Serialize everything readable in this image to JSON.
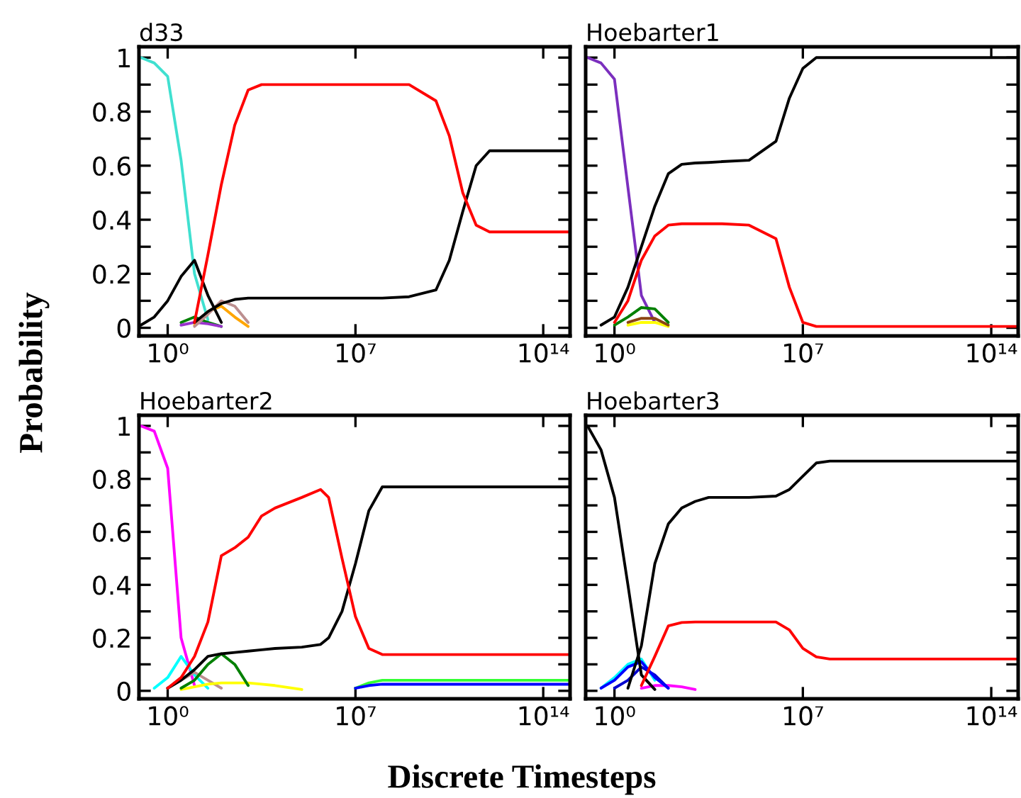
{
  "chart_data": [
    {
      "type": "line",
      "title": "d33",
      "xlabel": "Discrete Timesteps",
      "ylabel": "Probability",
      "log": "x",
      "xlim": [
        0.085,
        1000000000000000.0
      ],
      "ylim": [
        -0.03,
        1.04
      ],
      "xticks": [
        {
          "value": 1,
          "label": "10⁰"
        },
        {
          "value": 10000000.0,
          "label": "10⁷"
        },
        {
          "value": 100000000000000.0,
          "label": "10¹⁴"
        }
      ],
      "yticks": [
        0,
        {
          "value": 0.1,
          "label": null
        },
        {
          "value": 0.2,
          "label": "0.2"
        },
        {
          "value": 0.3,
          "label": null
        },
        {
          "value": 0.4,
          "label": "0.4"
        },
        {
          "value": 0.5,
          "label": null
        },
        {
          "value": 0.6,
          "label": "0.6"
        },
        {
          "value": 0.7,
          "label": null
        },
        {
          "value": 0.8,
          "label": "0.8"
        },
        {
          "value": 0.9,
          "label": null
        },
        1
      ],
      "x": [
        0.1,
        0.316,
        1,
        3.16,
        10,
        31.6,
        100,
        316,
        1000,
        3162,
        10000.0,
        100000.0,
        1000000.0,
        10000000.0,
        100000000.0,
        1000000000.0,
        10000000000.0,
        31600000000.0,
        100000000000.0,
        316000000000.0,
        1000000000000.0,
        10000000000000.0,
        100000000000000.0,
        1000000000000000.0
      ],
      "series": [
        {
          "color": "#40e0d0",
          "values": [
            1.0,
            0.98,
            0.93,
            0.62,
            0.2,
            0.03,
            null,
            null,
            null,
            null,
            null,
            null,
            null,
            null,
            null,
            null,
            null,
            null,
            null,
            null,
            null,
            null,
            null,
            null
          ]
        },
        {
          "color": "#008000",
          "values": [
            null,
            null,
            null,
            0.02,
            0.04,
            0.02,
            0.005,
            null,
            null,
            null,
            null,
            null,
            null,
            null,
            null,
            null,
            null,
            null,
            null,
            null,
            null,
            null,
            null,
            null
          ]
        },
        {
          "color": "#9932cc",
          "values": [
            null,
            null,
            null,
            0.01,
            0.02,
            0.015,
            0.005,
            null,
            null,
            null,
            null,
            null,
            null,
            null,
            null,
            null,
            null,
            null,
            null,
            null,
            null,
            null,
            null,
            null
          ]
        },
        {
          "color": "#ffa500",
          "values": [
            null,
            null,
            null,
            null,
            0.01,
            0.06,
            0.08,
            0.04,
            0.005,
            null,
            null,
            null,
            null,
            null,
            null,
            null,
            null,
            null,
            null,
            null,
            null,
            null,
            null,
            null
          ]
        },
        {
          "color": "#bc8f8f",
          "values": [
            null,
            null,
            null,
            null,
            0.005,
            0.05,
            0.1,
            0.08,
            0.02,
            null,
            null,
            null,
            null,
            null,
            null,
            null,
            null,
            null,
            null,
            null,
            null,
            null,
            null,
            null
          ]
        },
        {
          "color": "#000000",
          "values": [
            0.01,
            0.04,
            0.1,
            0.19,
            0.25,
            0.12,
            0.02,
            null,
            null,
            null,
            null,
            null,
            null,
            null,
            null,
            null,
            null,
            null,
            null,
            null,
            null,
            null,
            null,
            null
          ]
        },
        {
          "color": "#000000",
          "values": [
            null,
            null,
            null,
            null,
            0.02,
            0.06,
            0.09,
            0.105,
            0.11,
            0.11,
            0.11,
            0.11,
            0.11,
            0.11,
            0.11,
            0.115,
            0.14,
            0.25,
            0.43,
            0.6,
            0.655,
            0.655,
            0.655,
            0.655
          ]
        },
        {
          "color": "#ff0000",
          "values": [
            null,
            null,
            null,
            null,
            0.02,
            0.27,
            0.53,
            0.75,
            0.88,
            0.9,
            0.9,
            0.9,
            0.9,
            0.9,
            0.9,
            0.9,
            0.84,
            0.71,
            0.5,
            0.38,
            0.355,
            0.355,
            0.355,
            0.355
          ]
        }
      ]
    },
    {
      "type": "line",
      "title": "Hoebarter1",
      "log": "x",
      "tick_labels": "x",
      "xlim": [
        0.085,
        1000000000000000.0
      ],
      "ylim": [
        -0.03,
        1.04
      ],
      "xticks": [
        {
          "value": 1,
          "label": "10⁰"
        },
        {
          "value": 10000000.0,
          "label": "10⁷"
        },
        {
          "value": 100000000000000.0,
          "label": "10¹⁴"
        }
      ],
      "yticks": [
        {
          "value": 0,
          "label": null
        },
        {
          "value": 0.1,
          "label": null
        },
        {
          "value": 0.2,
          "label": null
        },
        {
          "value": 0.3,
          "label": null
        },
        {
          "value": 0.4,
          "label": null
        },
        {
          "value": 0.5,
          "label": null
        },
        {
          "value": 0.6,
          "label": null
        },
        {
          "value": 0.7,
          "label": null
        },
        {
          "value": 0.8,
          "label": null
        },
        {
          "value": 0.9,
          "label": null
        },
        {
          "value": 1,
          "label": null
        }
      ],
      "x": [
        0.1,
        0.316,
        1,
        3.16,
        10,
        31.6,
        100,
        316,
        1000,
        3162,
        10000.0,
        100000.0,
        1000000.0,
        3160000.0,
        10000000.0,
        31600000.0,
        100000000.0,
        1000000000.0,
        10000000000.0,
        100000000000.0,
        1000000000000.0,
        10000000000000.0,
        100000000000000.0,
        1000000000000000.0
      ],
      "series": [
        {
          "color": "#7b2fbe",
          "values": [
            1.0,
            0.98,
            0.92,
            0.52,
            0.12,
            0.02,
            null,
            null,
            null,
            null,
            null,
            null,
            null,
            null,
            null,
            null,
            null,
            null,
            null,
            null,
            null,
            null,
            null,
            null
          ]
        },
        {
          "color": "#ffff00",
          "values": [
            null,
            null,
            null,
            0.01,
            0.02,
            0.02,
            0.005,
            null,
            null,
            null,
            null,
            null,
            null,
            null,
            null,
            null,
            null,
            null,
            null,
            null,
            null,
            null,
            null,
            null
          ]
        },
        {
          "color": "#8b4513",
          "values": [
            null,
            null,
            null,
            0.02,
            0.035,
            0.035,
            0.01,
            null,
            null,
            null,
            null,
            null,
            null,
            null,
            null,
            null,
            null,
            null,
            null,
            null,
            null,
            null,
            null,
            null
          ]
        },
        {
          "color": "#008000",
          "values": [
            null,
            null,
            0.01,
            0.04,
            0.075,
            0.07,
            0.02,
            null,
            null,
            null,
            null,
            null,
            null,
            null,
            null,
            null,
            null,
            null,
            null,
            null,
            null,
            null,
            null,
            null
          ]
        },
        {
          "color": "#000000",
          "values": [
            null,
            0.01,
            0.04,
            0.15,
            0.3,
            0.45,
            0.57,
            0.605,
            0.61,
            0.612,
            0.615,
            0.62,
            0.69,
            0.85,
            0.96,
            1.0,
            1.0,
            1.0,
            1.0,
            1.0,
            1.0,
            1.0,
            1.0,
            1.0
          ]
        },
        {
          "color": "#ff0000",
          "values": [
            null,
            null,
            0.02,
            0.1,
            0.25,
            0.34,
            0.38,
            0.385,
            0.385,
            0.385,
            0.385,
            0.38,
            0.33,
            0.15,
            0.02,
            0.005,
            0.005,
            0.005,
            0.005,
            0.005,
            0.005,
            0.005,
            0.005,
            0.005
          ]
        }
      ]
    },
    {
      "type": "line",
      "title": "Hoebarter2",
      "log": "x",
      "xlim": [
        0.085,
        1000000000000000.0
      ],
      "ylim": [
        -0.03,
        1.04
      ],
      "xticks": [
        {
          "value": 1,
          "label": "10⁰"
        },
        {
          "value": 10000000.0,
          "label": "10⁷"
        },
        {
          "value": 100000000000000.0,
          "label": "10¹⁴"
        }
      ],
      "yticks": [
        0,
        {
          "value": 0.1,
          "label": null
        },
        {
          "value": 0.2,
          "label": "0.2"
        },
        {
          "value": 0.3,
          "label": null
        },
        {
          "value": 0.4,
          "label": "0.4"
        },
        {
          "value": 0.5,
          "label": null
        },
        {
          "value": 0.6,
          "label": "0.6"
        },
        {
          "value": 0.7,
          "label": null
        },
        {
          "value": 0.8,
          "label": "0.8"
        },
        {
          "value": 0.9,
          "label": null
        },
        1
      ],
      "x": [
        0.1,
        0.316,
        1,
        3.16,
        10,
        31.6,
        100,
        316,
        1000,
        3162,
        10000.0,
        100000.0,
        500000.0,
        1000000.0,
        3160000.0,
        10000000.0,
        31600000.0,
        100000000.0,
        1000000000.0,
        10000000000.0,
        100000000000.0,
        1000000000000.0,
        10000000000000.0,
        100000000000000.0,
        1000000000000000.0
      ],
      "series": [
        {
          "color": "#ff00ff",
          "values": [
            1.0,
            0.98,
            0.84,
            0.2,
            0.02,
            null,
            null,
            null,
            null,
            null,
            null,
            null,
            null,
            null,
            null,
            null,
            null,
            null,
            null,
            null,
            null,
            null,
            null,
            null,
            null
          ]
        },
        {
          "color": "#00ffff",
          "values": [
            null,
            0.01,
            0.05,
            0.13,
            0.06,
            0.01,
            null,
            null,
            null,
            null,
            null,
            null,
            null,
            null,
            null,
            null,
            null,
            null,
            null,
            null,
            null,
            null,
            null,
            null,
            null
          ]
        },
        {
          "color": "#bc8f8f",
          "values": [
            null,
            null,
            0.01,
            0.04,
            0.07,
            0.04,
            0.01,
            null,
            null,
            null,
            null,
            null,
            null,
            null,
            null,
            null,
            null,
            null,
            null,
            null,
            null,
            null,
            null,
            null,
            null
          ]
        },
        {
          "color": "#ffff00",
          "values": [
            null,
            null,
            null,
            0.005,
            0.015,
            0.025,
            0.03,
            0.03,
            0.03,
            0.025,
            0.02,
            0.005,
            null,
            null,
            null,
            null,
            null,
            null,
            null,
            null,
            null,
            null,
            null,
            null,
            null
          ]
        },
        {
          "color": "#008000",
          "values": [
            null,
            null,
            null,
            0.01,
            0.04,
            0.1,
            0.14,
            0.1,
            0.02,
            null,
            null,
            null,
            null,
            null,
            null,
            null,
            null,
            null,
            null,
            null,
            null,
            null,
            null,
            null,
            null
          ]
        },
        {
          "color": "#33ff33",
          "values": [
            null,
            null,
            null,
            null,
            null,
            null,
            null,
            null,
            null,
            null,
            null,
            null,
            null,
            null,
            null,
            0.01,
            0.03,
            0.04,
            0.04,
            0.04,
            0.04,
            0.04,
            0.04,
            0.04,
            0.04
          ]
        },
        {
          "color": "#0000ff",
          "values": [
            null,
            null,
            null,
            null,
            null,
            null,
            null,
            null,
            null,
            null,
            null,
            null,
            null,
            null,
            null,
            0.01,
            0.02,
            0.025,
            0.025,
            0.025,
            0.025,
            0.025,
            0.025,
            0.025,
            0.025
          ]
        },
        {
          "color": "#000000",
          "values": [
            null,
            null,
            0.01,
            0.04,
            0.08,
            0.13,
            0.14,
            0.145,
            0.15,
            0.155,
            0.16,
            0.165,
            0.175,
            0.2,
            0.3,
            0.48,
            0.68,
            0.77,
            0.77,
            0.77,
            0.77,
            0.77,
            0.77,
            0.77,
            0.77
          ]
        },
        {
          "color": "#ff0000",
          "values": [
            null,
            null,
            0.01,
            0.05,
            0.13,
            0.26,
            0.51,
            0.54,
            0.58,
            0.66,
            0.69,
            0.73,
            0.76,
            0.73,
            0.5,
            0.28,
            0.16,
            0.137,
            0.137,
            0.137,
            0.137,
            0.137,
            0.137,
            0.137,
            0.137
          ]
        }
      ]
    },
    {
      "type": "line",
      "title": "Hoebarter3",
      "log": "x",
      "tick_labels": "x",
      "xlim": [
        0.085,
        1000000000000000.0
      ],
      "ylim": [
        -0.03,
        1.04
      ],
      "xticks": [
        {
          "value": 1,
          "label": "10⁰"
        },
        {
          "value": 10000000.0,
          "label": "10⁷"
        },
        {
          "value": 100000000000000.0,
          "label": "10¹⁴"
        }
      ],
      "yticks": [
        {
          "value": 0,
          "label": null
        },
        {
          "value": 0.1,
          "label": null
        },
        {
          "value": 0.2,
          "label": null
        },
        {
          "value": 0.3,
          "label": null
        },
        {
          "value": 0.4,
          "label": null
        },
        {
          "value": 0.5,
          "label": null
        },
        {
          "value": 0.6,
          "label": null
        },
        {
          "value": 0.7,
          "label": null
        },
        {
          "value": 0.8,
          "label": null
        },
        {
          "value": 0.9,
          "label": null
        },
        {
          "value": 1,
          "label": null
        }
      ],
      "x": [
        0.1,
        0.316,
        1,
        3.16,
        10,
        31.6,
        100,
        316,
        1000,
        3162,
        10000.0,
        100000.0,
        1000000.0,
        3160000.0,
        10000000.0,
        31600000.0,
        100000000.0,
        1000000000.0,
        10000000000.0,
        100000000000.0,
        1000000000000.0,
        10000000000000.0,
        100000000000000.0,
        1000000000000000.0
      ],
      "series": [
        {
          "color": "#ff00ff",
          "values": [
            null,
            null,
            null,
            null,
            0.01,
            0.02,
            0.02,
            0.015,
            0.005,
            null,
            null,
            null,
            null,
            null,
            null,
            null,
            null,
            null,
            null,
            null,
            null,
            null,
            null,
            null
          ]
        },
        {
          "color": "#00ffff",
          "values": [
            null,
            0.01,
            0.05,
            0.1,
            0.12,
            0.04,
            null,
            null,
            null,
            null,
            null,
            null,
            null,
            null,
            null,
            null,
            null,
            null,
            null,
            null,
            null,
            null,
            null,
            null
          ]
        },
        {
          "color": "#0000cd",
          "values": [
            null,
            null,
            0.01,
            0.04,
            0.09,
            0.06,
            0.01,
            null,
            null,
            null,
            null,
            null,
            null,
            null,
            null,
            null,
            null,
            null,
            null,
            null,
            null,
            null,
            null,
            null
          ]
        },
        {
          "color": "#0000ff",
          "values": [
            null,
            0.01,
            0.04,
            0.09,
            0.11,
            0.05,
            0.01,
            null,
            null,
            null,
            null,
            null,
            null,
            null,
            null,
            null,
            null,
            null,
            null,
            null,
            null,
            null,
            null,
            null
          ]
        },
        {
          "color": "#000000",
          "values": [
            1.0,
            0.91,
            0.73,
            0.4,
            0.06,
            0.005,
            null,
            null,
            null,
            null,
            null,
            null,
            null,
            null,
            null,
            null,
            null,
            null,
            null,
            null,
            null,
            null,
            null,
            null
          ]
        },
        {
          "color": "#000000",
          "values": [
            null,
            null,
            null,
            0.01,
            0.17,
            0.48,
            0.63,
            0.69,
            0.715,
            0.73,
            0.73,
            0.73,
            0.735,
            0.76,
            0.81,
            0.86,
            0.867,
            0.867,
            0.867,
            0.867,
            0.867,
            0.867,
            0.867,
            0.867
          ]
        },
        {
          "color": "#ff0000",
          "values": [
            null,
            null,
            null,
            null,
            0.02,
            0.13,
            0.245,
            0.258,
            0.26,
            0.26,
            0.26,
            0.26,
            0.26,
            0.23,
            0.16,
            0.128,
            0.12,
            0.12,
            0.12,
            0.12,
            0.12,
            0.12,
            0.12,
            0.12
          ]
        }
      ]
    }
  ]
}
